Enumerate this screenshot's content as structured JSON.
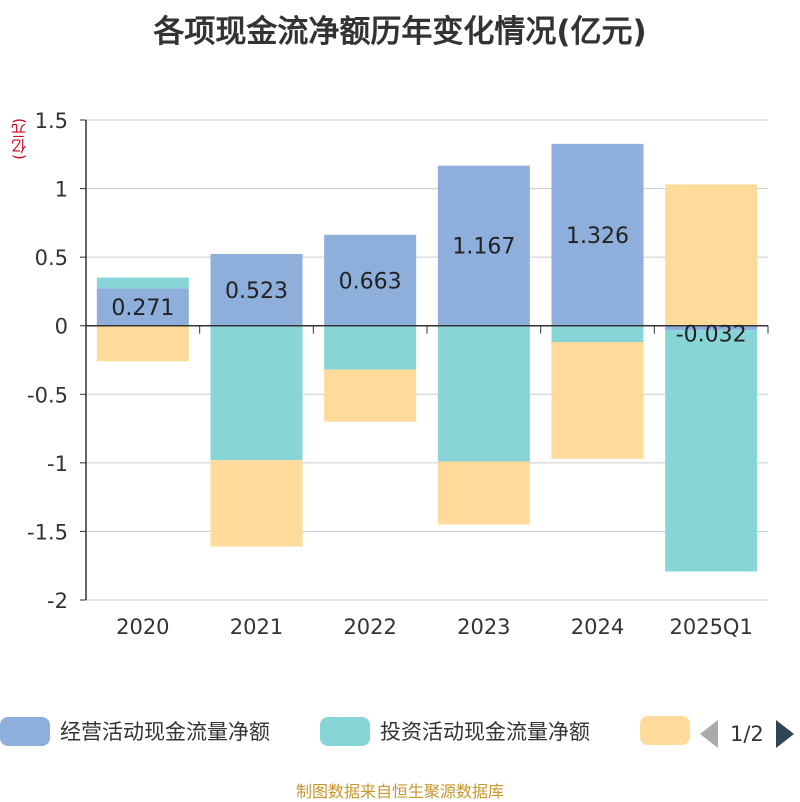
{
  "chart_data": {
    "type": "bar",
    "stacked": true,
    "title": "各项现金流净额历年变化情况(亿元)",
    "ylabel": "(亿元)",
    "categories": [
      "2020",
      "2021",
      "2022",
      "2023",
      "2024",
      "2025Q1"
    ],
    "ylim": [
      -2,
      1.5
    ],
    "yticks": [
      "1.5",
      "1",
      "0.5",
      "0",
      "-0.5",
      "-1",
      "-1.5",
      "-2"
    ],
    "ytick_values": [
      1.5,
      1,
      0.5,
      0,
      -0.5,
      -1,
      -1.5,
      -2
    ],
    "grid": true,
    "legend_position": "bottom",
    "series": [
      {
        "name": "经营活动现金流量净额",
        "color": "#8eaedb",
        "values": [
          0.271,
          0.523,
          0.663,
          1.167,
          1.326,
          -0.032
        ],
        "labels": [
          "0.271",
          "0.523",
          "0.663",
          "1.167",
          "1.326",
          "-0.032"
        ]
      },
      {
        "name": "投资活动现金流量净额",
        "color": "#88d5d8",
        "values": [
          0.08,
          -0.98,
          -0.32,
          -0.99,
          -0.12,
          -1.76
        ]
      },
      {
        "name": "",
        "color": "#fedb9b",
        "values": [
          -0.26,
          -0.63,
          -0.38,
          -0.46,
          -0.85,
          1.03
        ]
      }
    ]
  },
  "legend": {
    "items": [
      {
        "label": "经营活动现金流量净额",
        "color": "#8eaedb"
      },
      {
        "label": "投资活动现金流量净额",
        "color": "#88d5d8"
      },
      {
        "label": "",
        "color": "#fedb9b"
      }
    ],
    "page": "1/2"
  },
  "source": "制图数据来自恒生聚源数据库"
}
